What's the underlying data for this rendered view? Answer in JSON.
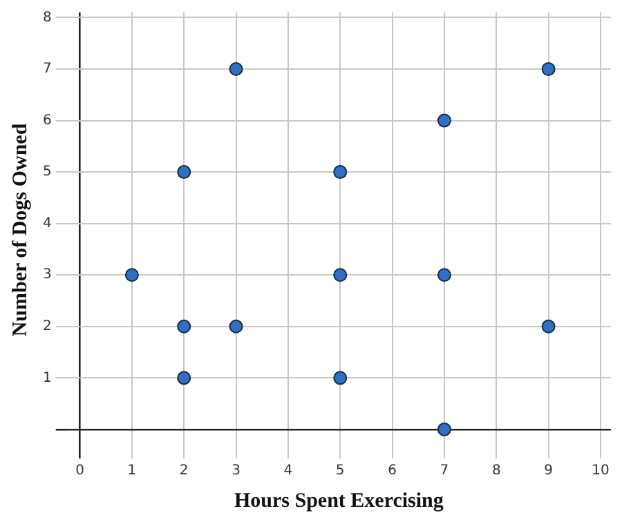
{
  "chart_data": {
    "type": "scatter",
    "xlabel": "Hours Spent Exercising",
    "ylabel": "Number of Dogs Owned",
    "x": [
      1,
      2,
      2,
      2,
      3,
      3,
      5,
      5,
      5,
      7,
      7,
      7,
      9,
      9
    ],
    "series": [
      {
        "color": "#2f6fc4",
        "values": [
          3,
          5,
          2,
          1,
          7,
          2,
          5,
          3,
          1,
          6,
          3,
          0,
          7,
          2
        ]
      }
    ],
    "xlim": [
      -0.25,
      10.2
    ],
    "xticks": [
      0,
      1,
      2,
      3,
      4,
      5,
      6,
      7,
      8,
      9,
      10
    ],
    "ylim": [
      -0.35,
      8.1
    ],
    "yticks": [
      {
        "value": 0,
        "label": null
      },
      1,
      2,
      3,
      4,
      5,
      6,
      7,
      8
    ],
    "grid": true,
    "marker": "circle",
    "legend": false
  }
}
